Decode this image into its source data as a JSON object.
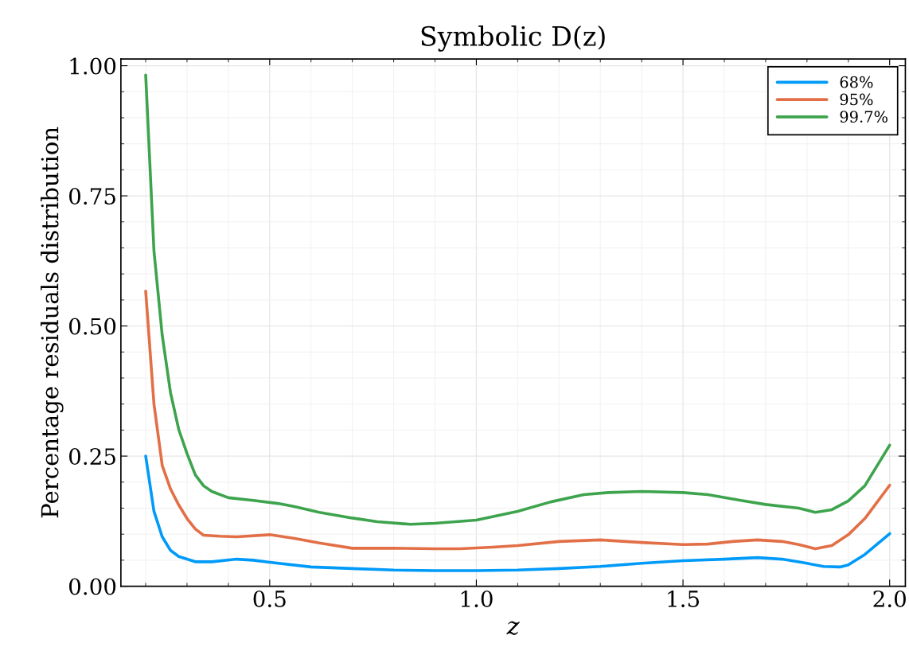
{
  "chart_data": {
    "type": "line",
    "title": "Symbolic D(z)",
    "xlabel": "z",
    "ylabel": "Percentage residuals distribution",
    "xlim": [
      0.14,
      2.038
    ],
    "ylim": [
      0,
      1.013
    ],
    "xticks": [
      0.5,
      {
        "value": 1.0,
        "label": "1.0"
      },
      1.5,
      {
        "value": 2.0,
        "label": "2.0"
      }
    ],
    "yticks": [
      {
        "value": 0,
        "label": "0.00"
      },
      0.25,
      {
        "value": 0.5,
        "label": "0.50"
      },
      0.75,
      {
        "value": 1.0,
        "label": "1.00"
      }
    ],
    "grid": true,
    "legend": "top right",
    "line_style": "solid",
    "series": [
      {
        "name": "68%",
        "color": "#009af9",
        "x": [
          0.2,
          0.22,
          0.24,
          0.26,
          0.28,
          0.32,
          0.36,
          0.42,
          0.46,
          0.5,
          0.6,
          0.7,
          0.8,
          0.9,
          1.0,
          1.1,
          1.2,
          1.3,
          1.4,
          1.5,
          1.6,
          1.68,
          1.74,
          1.8,
          1.84,
          1.88,
          1.9,
          1.94,
          2.0
        ],
        "values": [
          0.25,
          0.144,
          0.095,
          0.069,
          0.057,
          0.047,
          0.047,
          0.052,
          0.05,
          0.046,
          0.037,
          0.034,
          0.031,
          0.03,
          0.03,
          0.031,
          0.034,
          0.038,
          0.044,
          0.049,
          0.052,
          0.055,
          0.052,
          0.044,
          0.038,
          0.037,
          0.041,
          0.061,
          0.101
        ]
      },
      {
        "name": "95%",
        "color": "#e26f46",
        "x": [
          0.2,
          0.22,
          0.24,
          0.26,
          0.28,
          0.3,
          0.32,
          0.34,
          0.38,
          0.42,
          0.5,
          0.56,
          0.62,
          0.7,
          0.8,
          0.9,
          0.96,
          1.04,
          1.1,
          1.2,
          1.3,
          1.4,
          1.5,
          1.56,
          1.62,
          1.68,
          1.74,
          1.78,
          1.82,
          1.86,
          1.9,
          1.94,
          2.0
        ],
        "values": [
          0.567,
          0.35,
          0.232,
          0.187,
          0.156,
          0.13,
          0.11,
          0.098,
          0.096,
          0.095,
          0.099,
          0.092,
          0.083,
          0.073,
          0.073,
          0.072,
          0.072,
          0.075,
          0.078,
          0.086,
          0.089,
          0.084,
          0.08,
          0.081,
          0.086,
          0.089,
          0.086,
          0.08,
          0.072,
          0.078,
          0.099,
          0.13,
          0.194
        ]
      },
      {
        "name": "99.7%",
        "color": "#3da44d",
        "x": [
          0.2,
          0.22,
          0.24,
          0.26,
          0.28,
          0.3,
          0.32,
          0.34,
          0.36,
          0.4,
          0.46,
          0.52,
          0.56,
          0.62,
          0.7,
          0.76,
          0.84,
          0.9,
          1.0,
          1.1,
          1.18,
          1.26,
          1.32,
          1.4,
          1.5,
          1.56,
          1.64,
          1.7,
          1.78,
          1.82,
          1.86,
          1.9,
          1.94,
          2.0
        ],
        "values": [
          0.982,
          0.644,
          0.482,
          0.372,
          0.301,
          0.255,
          0.214,
          0.193,
          0.182,
          0.17,
          0.165,
          0.159,
          0.153,
          0.142,
          0.131,
          0.124,
          0.119,
          0.121,
          0.127,
          0.144,
          0.162,
          0.176,
          0.18,
          0.182,
          0.18,
          0.176,
          0.165,
          0.157,
          0.15,
          0.142,
          0.147,
          0.164,
          0.193,
          0.271
        ]
      }
    ]
  }
}
